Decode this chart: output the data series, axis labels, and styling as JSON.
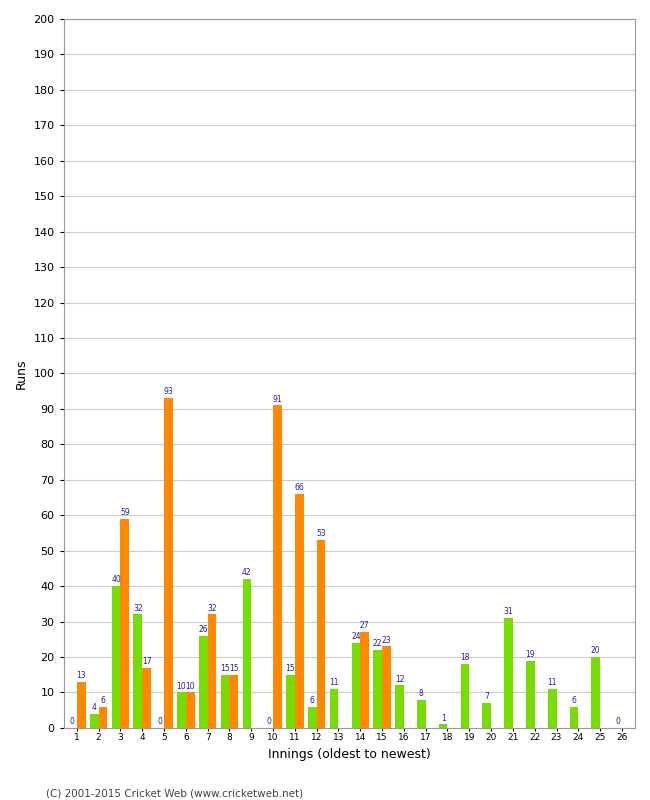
{
  "ylabel": "Runs",
  "xlabel": "Innings (oldest to newest)",
  "ylim": [
    0,
    200
  ],
  "yticks": [
    0,
    10,
    20,
    30,
    40,
    50,
    60,
    70,
    80,
    90,
    100,
    110,
    120,
    130,
    140,
    150,
    160,
    170,
    180,
    190,
    200
  ],
  "green_color": "#77dd00",
  "orange_color": "#ff8800",
  "label_color": "#2222aa",
  "background_color": "#ffffff",
  "grid_color": "#cccccc",
  "footer": "(C) 2001-2015 Cricket Web (www.cricketweb.net)",
  "innings": [
    {
      "label": "1",
      "green": 0,
      "orange": 13
    },
    {
      "label": "2",
      "green": 4,
      "orange": 6
    },
    {
      "label": "3",
      "green": 40,
      "orange": 59
    },
    {
      "label": "4",
      "green": 32,
      "orange": 17
    },
    {
      "label": "5",
      "green": 0,
      "orange": 93
    },
    {
      "label": "6",
      "green": 10,
      "orange": 10
    },
    {
      "label": "7",
      "green": 26,
      "orange": 32
    },
    {
      "label": "8",
      "green": 15,
      "orange": 15
    },
    {
      "label": "9",
      "green": 42,
      "orange": 0
    },
    {
      "label": "10",
      "green": 0,
      "orange": 91
    },
    {
      "label": "11",
      "green": 15,
      "orange": 66
    },
    {
      "label": "12",
      "green": 6,
      "orange": 53
    },
    {
      "label": "13",
      "green": 11,
      "orange": 0
    },
    {
      "label": "14",
      "green": 24,
      "orange": 27
    },
    {
      "label": "15",
      "green": 22,
      "orange": 23
    },
    {
      "label": "16",
      "green": 12,
      "orange": 0
    },
    {
      "label": "17",
      "green": 8,
      "orange": 0
    },
    {
      "label": "18",
      "green": 1,
      "orange": 0
    },
    {
      "label": "19",
      "green": 18,
      "orange": 0
    },
    {
      "label": "20",
      "green": 7,
      "orange": 0
    },
    {
      "label": "21",
      "green": 31,
      "orange": 0
    },
    {
      "label": "22",
      "green": 19,
      "orange": 0
    },
    {
      "label": "23",
      "green": 11,
      "orange": 0
    },
    {
      "label": "24",
      "green": 6,
      "orange": 0
    },
    {
      "label": "25",
      "green": 20,
      "orange": 0
    },
    {
      "label": "26",
      "green": 0,
      "orange": 0
    }
  ]
}
